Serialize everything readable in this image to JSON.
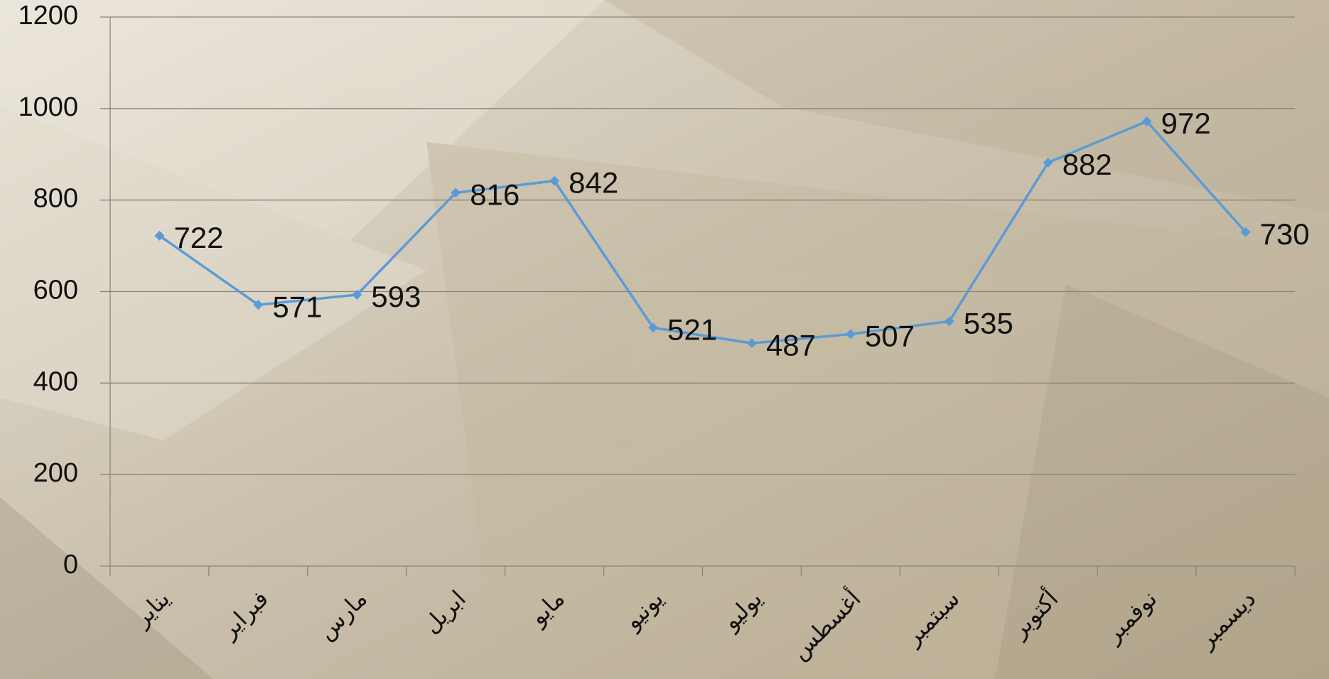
{
  "chart_data": {
    "type": "line",
    "categories": [
      "يناير",
      "فبراير",
      "مارس",
      "ابريل",
      "مايو",
      "يونيو",
      "يوليو",
      "أغسطس",
      "سبتمبر",
      "أكتوبر",
      "نوفمبر",
      "ديسمبر"
    ],
    "series": [
      {
        "name": "",
        "color": "#5b9bd5",
        "values": [
          722,
          571,
          593,
          816,
          842,
          521,
          487,
          507,
          535,
          882,
          972,
          730
        ]
      }
    ],
    "ylim": [
      0,
      1200
    ],
    "yticks": [
      0,
      200,
      400,
      600,
      800,
      1000,
      1200
    ],
    "grid": true,
    "data_labels": true
  }
}
